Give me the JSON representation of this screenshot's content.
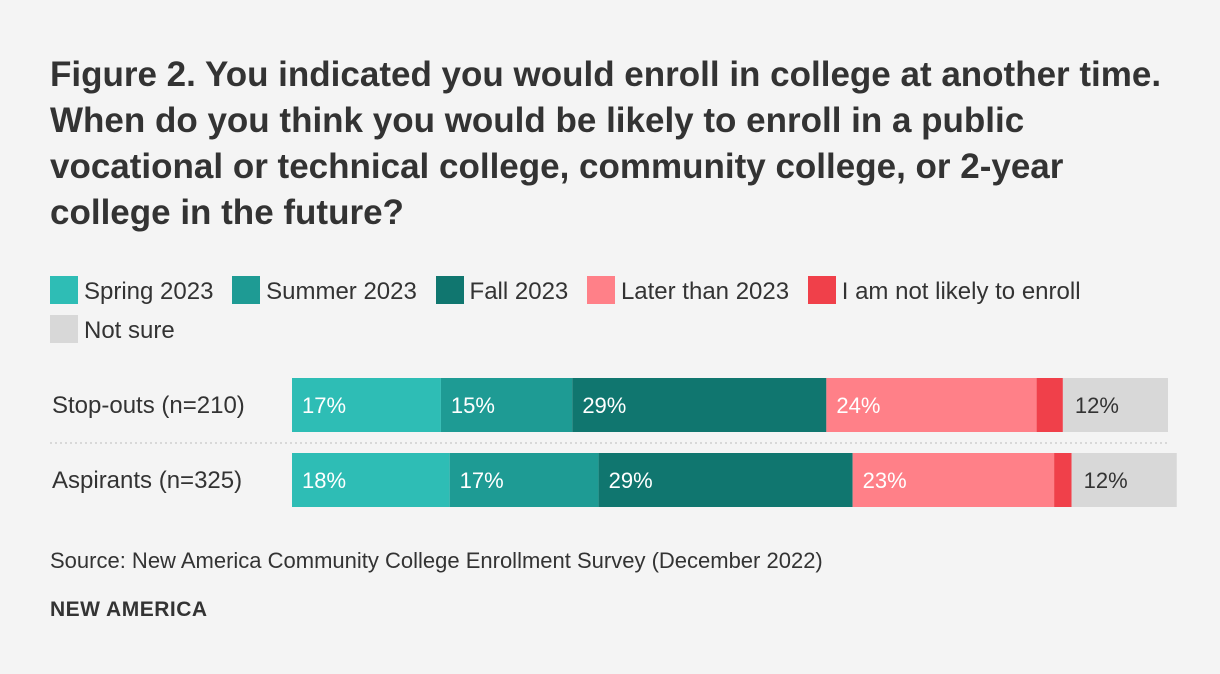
{
  "title": "Figure 2. You indicated you would enroll in college at another time. When do you think you would be likely to enroll in a public vocational or technical college, community college, or 2-year college in the future?",
  "legend": [
    {
      "label": "Spring 2023",
      "color": "#2ebdb5"
    },
    {
      "label": "Summer 2023",
      "color": "#1e9b94"
    },
    {
      "label": "Fall 2023",
      "color": "#10766f"
    },
    {
      "label": "Later than 2023",
      "color": "#ff8088"
    },
    {
      "label": "I am not likely to enroll",
      "color": "#f0404a"
    },
    {
      "label": "Not sure",
      "color": "#d8d8d8"
    }
  ],
  "chart_data": {
    "type": "bar",
    "orientation": "horizontal",
    "stacked": true,
    "categories": [
      "Stop-outs (n=210)",
      "Aspirants (n=325)"
    ],
    "series": [
      {
        "name": "Spring 2023",
        "values": [
          17,
          18
        ],
        "labels": [
          "17%",
          "18%"
        ]
      },
      {
        "name": "Summer 2023",
        "values": [
          15,
          17
        ],
        "labels": [
          "15%",
          "17%"
        ]
      },
      {
        "name": "Fall 2023",
        "values": [
          29,
          29
        ],
        "labels": [
          "29%",
          "29%"
        ]
      },
      {
        "name": "Later than 2023",
        "values": [
          24,
          23
        ],
        "labels": [
          "24%",
          "23%"
        ]
      },
      {
        "name": "I am not likely to enroll",
        "values": [
          3,
          2
        ],
        "labels": [
          "",
          ""
        ]
      },
      {
        "name": "Not sure",
        "values": [
          12,
          12
        ],
        "labels": [
          "12%",
          "12%"
        ]
      }
    ],
    "xlim": [
      0,
      100
    ],
    "legend_position": "top"
  },
  "source": "Source: New America Community College Enrollment Survey (December 2022)",
  "brand": "NEW AMERICA"
}
